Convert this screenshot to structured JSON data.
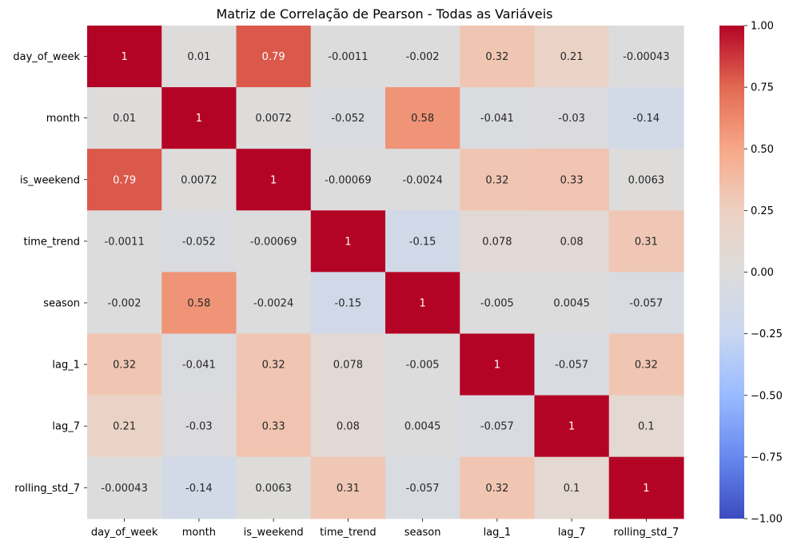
{
  "chart_data": {
    "type": "heatmap",
    "title": "Matriz de Correlação de Pearson - Todas as Variáveis",
    "xlabel": "",
    "ylabel": "",
    "x_categories": [
      "day_of_week",
      "month",
      "is_weekend",
      "time_trend",
      "season",
      "lag_1",
      "lag_7",
      "rolling_std_7"
    ],
    "y_categories": [
      "day_of_week",
      "month",
      "is_weekend",
      "time_trend",
      "season",
      "lag_1",
      "lag_7",
      "rolling_std_7"
    ],
    "values": [
      [
        1,
        0.01,
        0.79,
        -0.0011,
        -0.002,
        0.32,
        0.21,
        -0.00043
      ],
      [
        0.01,
        1,
        0.0072,
        -0.052,
        0.58,
        -0.041,
        -0.03,
        -0.14
      ],
      [
        0.79,
        0.0072,
        1,
        -0.00069,
        -0.0024,
        0.32,
        0.33,
        0.0063
      ],
      [
        -0.0011,
        -0.052,
        -0.00069,
        1,
        -0.15,
        0.078,
        0.08,
        0.31
      ],
      [
        -0.002,
        0.58,
        -0.0024,
        -0.15,
        1,
        -0.005,
        0.0045,
        -0.057
      ],
      [
        0.32,
        -0.041,
        0.32,
        0.078,
        -0.005,
        1,
        -0.057,
        0.32
      ],
      [
        0.21,
        -0.03,
        0.33,
        0.08,
        0.0045,
        -0.057,
        1,
        0.1
      ],
      [
        -0.00043,
        -0.14,
        0.0063,
        0.31,
        -0.057,
        0.32,
        0.1,
        1
      ]
    ],
    "value_labels": [
      [
        "1",
        "0.01",
        "0.79",
        "-0.0011",
        "-0.002",
        "0.32",
        "0.21",
        "-0.00043"
      ],
      [
        "0.01",
        "1",
        "0.0072",
        "-0.052",
        "0.58",
        "-0.041",
        "-0.03",
        "-0.14"
      ],
      [
        "0.79",
        "0.0072",
        "1",
        "-0.00069",
        "-0.0024",
        "0.32",
        "0.33",
        "0.0063"
      ],
      [
        "-0.0011",
        "-0.052",
        "-0.00069",
        "1",
        "-0.15",
        "0.078",
        "0.08",
        "0.31"
      ],
      [
        "-0.002",
        "0.58",
        "-0.0024",
        "-0.15",
        "1",
        "-0.005",
        "0.0045",
        "-0.057"
      ],
      [
        "0.32",
        "-0.041",
        "0.32",
        "0.078",
        "-0.005",
        "1",
        "-0.057",
        "0.32"
      ],
      [
        "0.21",
        "-0.03",
        "0.33",
        "0.08",
        "0.0045",
        "-0.057",
        "1",
        "0.1"
      ],
      [
        "-0.00043",
        "-0.14",
        "0.0063",
        "0.31",
        "-0.057",
        "0.32",
        "0.1",
        "1"
      ]
    ],
    "colormap": "coolwarm",
    "vmin": -1,
    "vmax": 1,
    "colorbar_ticks": [
      -1,
      -0.75,
      -0.5,
      -0.25,
      0,
      0.25,
      0.5,
      0.75,
      1
    ],
    "colorbar_tick_labels": [
      "−1.00",
      "−0.75",
      "−0.50",
      "−0.25",
      "0.00",
      "0.25",
      "0.50",
      "0.75",
      "1.00"
    ],
    "colormap_stops": [
      "#3b4cc0",
      "#6788ee",
      "#9abbff",
      "#c9d7f0",
      "#dddcdc",
      "#edd1c2",
      "#f7a889",
      "#e26952",
      "#b40426"
    ],
    "grid": false,
    "legend": "colorbar-right"
  }
}
